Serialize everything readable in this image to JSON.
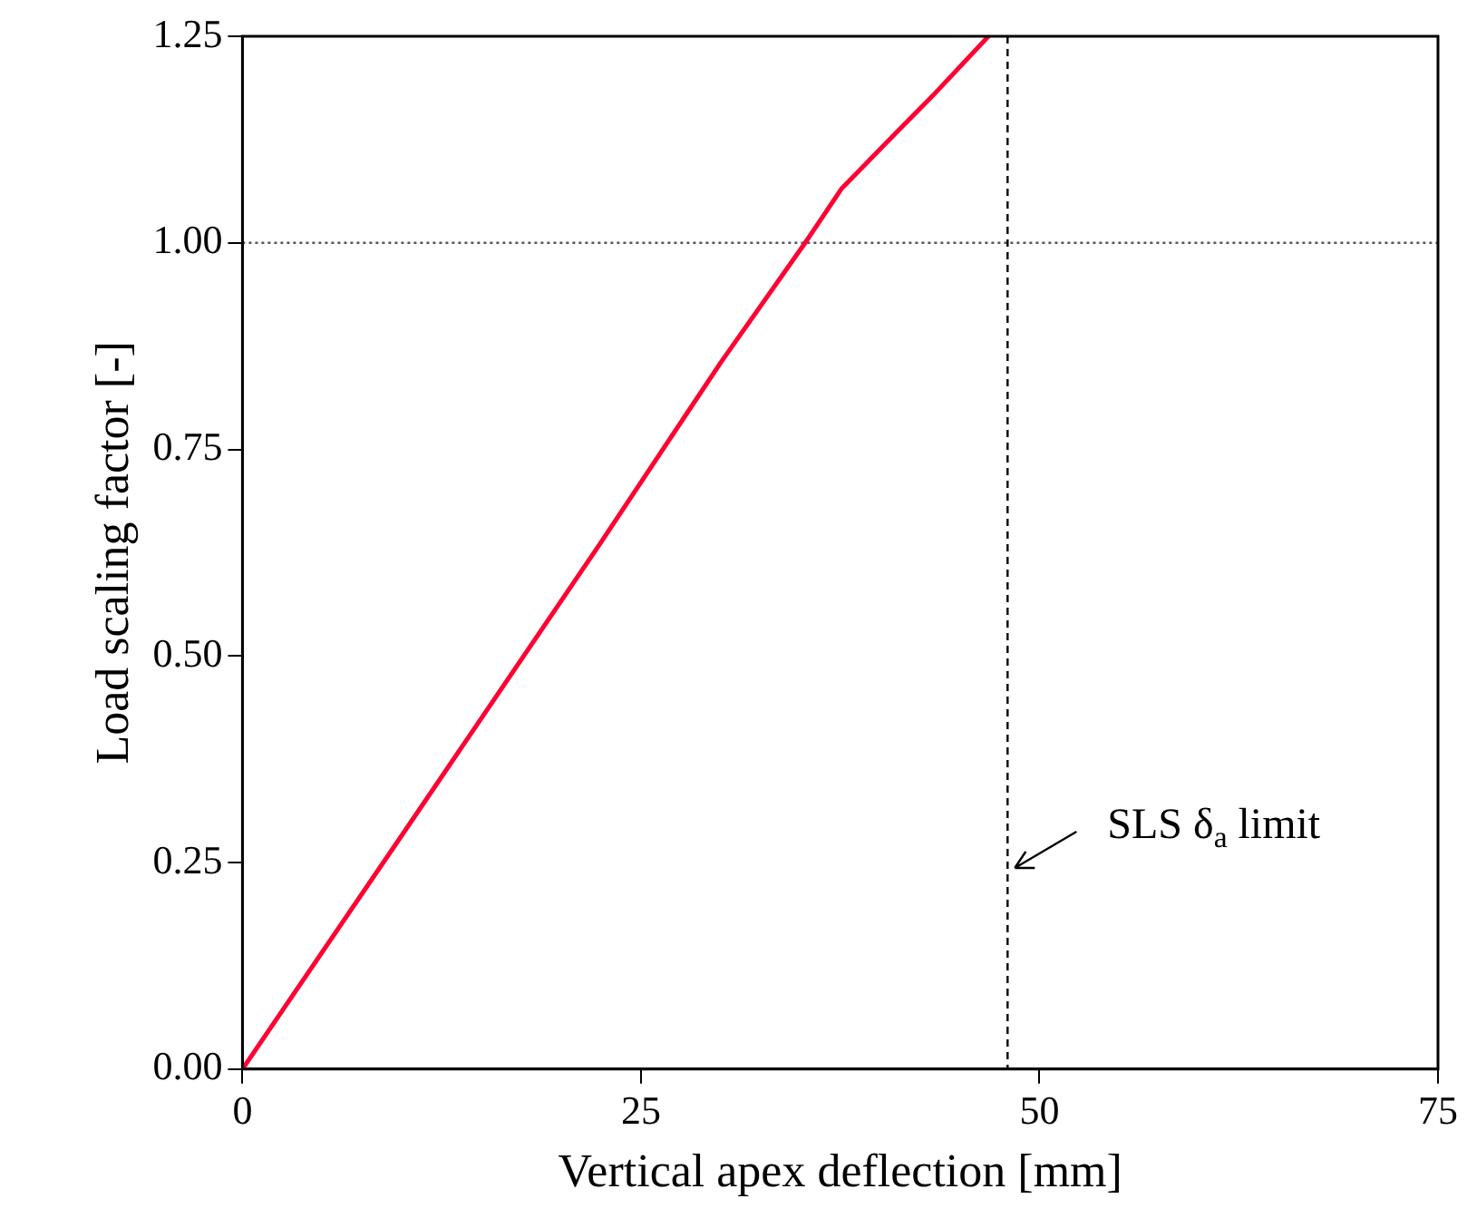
{
  "chart_data": {
    "type": "line",
    "xlabel": "Vertical apex deflection [mm]",
    "ylabel": "Load scaling factor [-]",
    "x": [
      0,
      10,
      22.4,
      30,
      35.3,
      37.6,
      41,
      43.3,
      46.8
    ],
    "series": [
      {
        "color": "#ff0033",
        "values": [
          0,
          0.283,
          0.635,
          0.855,
          1.0,
          1.066,
          1.133,
          1.178,
          1.25
        ]
      }
    ],
    "xlim": [
      0,
      75
    ],
    "xticks": [
      0,
      25,
      50,
      75
    ],
    "ylim": [
      0,
      1.25
    ],
    "yticks": [
      {
        "value": 0,
        "label": "0.00"
      },
      0.25,
      {
        "value": 0.5,
        "label": "0.50"
      },
      0.75,
      {
        "value": 1,
        "label": "1.00"
      },
      1.25
    ],
    "grid": false,
    "legend": false,
    "marker": "none",
    "line_style": "solid",
    "ref_lines": [
      {
        "axis": "y",
        "value": 1,
        "line_style": "dotted",
        "color": "#555555"
      },
      {
        "axis": "x",
        "value": 48,
        "line_style": "dashed",
        "color": "#000000"
      }
    ],
    "annotations": [
      {
        "text": "SLS δ$_{a}$ limit",
        "x": 48,
        "y": 0.25
      }
    ]
  }
}
